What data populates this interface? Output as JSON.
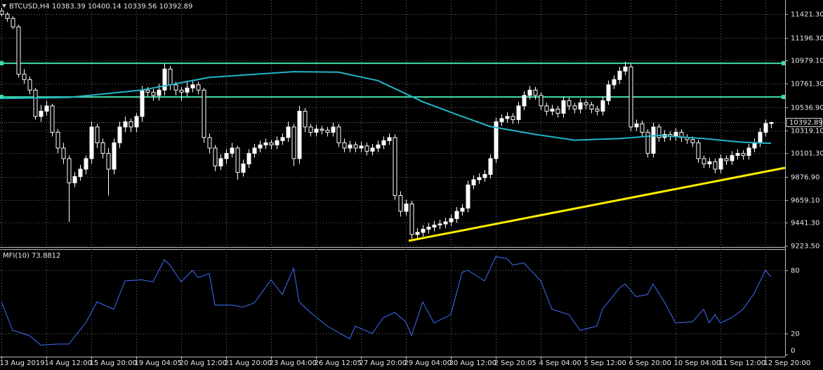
{
  "chart_data": {
    "type": "candlestick",
    "title": "BTCUSD,H4 10383.39 10400.14 10339.56 10392.89",
    "ylim": [
      9210,
      11555
    ],
    "yticks": [
      {
        "value": 11421.3,
        "label": "11421.30"
      },
      {
        "value": 11196.3,
        "label": "11196.30"
      },
      {
        "value": 10979.1,
        "label": "10979.10"
      },
      {
        "value": 10761.3,
        "label": "10761.30"
      },
      {
        "value": 10536.9,
        "label": "10536.90"
      },
      {
        "value": 10319.1,
        "label": "10319.10"
      },
      {
        "value": 10101.3,
        "label": "10101.30"
      },
      {
        "value": 9876.9,
        "label": "9876.90"
      },
      {
        "value": 9659.1,
        "label": "9659.10"
      },
      {
        "value": 9441.3,
        "label": "9441.30"
      },
      {
        "value": 9223.5,
        "label": "9223.50"
      }
    ],
    "last_price": 10392.89,
    "xticks": [
      {
        "value": 0,
        "label": "13 Aug 2019"
      },
      {
        "value": 8,
        "label": "14 Aug 12:00"
      },
      {
        "value": 16,
        "label": "15 Aug 20:00"
      },
      {
        "value": 24,
        "label": "19 Aug 04:05"
      },
      {
        "value": 32,
        "label": "20 Aug 12:00"
      },
      {
        "value": 40,
        "label": "21 Aug 20:00"
      },
      {
        "value": 48,
        "label": "23 Aug 04:00"
      },
      {
        "value": 56,
        "label": "26 Aug 12:05"
      },
      {
        "value": 64,
        "label": "27 Aug 20:00"
      },
      {
        "value": 72,
        "label": "29 Aug 04:00"
      },
      {
        "value": 80,
        "label": "30 Aug 12:00"
      },
      {
        "value": 88,
        "label": "2 Sep 20:05"
      },
      {
        "value": 96,
        "label": "4 Sep 04:00"
      },
      {
        "value": 104,
        "label": "5 Sep 12:00"
      },
      {
        "value": 112,
        "label": "6 Sep 20:00"
      },
      {
        "value": 120,
        "label": "10 Sep 04:00"
      },
      {
        "value": 128,
        "label": "11 Sep 12:00"
      },
      {
        "value": 136,
        "label": "12 Sep 20:00"
      }
    ],
    "grid": true,
    "candle_color": "#ffffff",
    "candles": [
      [
        11450,
        11480,
        11400,
        11420
      ],
      [
        11420,
        11440,
        11350,
        11380
      ],
      [
        11380,
        11400,
        11280,
        11300
      ],
      [
        11300,
        11320,
        10820,
        10850
      ],
      [
        10850,
        10900,
        10760,
        10800
      ],
      [
        10800,
        10830,
        10660,
        10700
      ],
      [
        10700,
        10720,
        10420,
        10450
      ],
      [
        10450,
        10560,
        10400,
        10500
      ],
      [
        10500,
        10600,
        10460,
        10550
      ],
      [
        10550,
        10570,
        10260,
        10300
      ],
      [
        10300,
        10330,
        10100,
        10150
      ],
      [
        10150,
        10200,
        10000,
        10050
      ],
      [
        10050,
        10080,
        9450,
        9820
      ],
      [
        9820,
        9920,
        9780,
        9880
      ],
      [
        9880,
        9990,
        9840,
        9950
      ],
      [
        9950,
        10080,
        9900,
        10050
      ],
      [
        10050,
        10400,
        10000,
        10350
      ],
      [
        10350,
        10380,
        10150,
        10200
      ],
      [
        10200,
        10240,
        10050,
        10100
      ],
      [
        10100,
        10150,
        9700,
        9950
      ],
      [
        9950,
        10240,
        9900,
        10200
      ],
      [
        10200,
        10400,
        10150,
        10350
      ],
      [
        10350,
        10450,
        10300,
        10400
      ],
      [
        10400,
        10430,
        10300,
        10350
      ],
      [
        10350,
        10480,
        10300,
        10450
      ],
      [
        10450,
        10740,
        10400,
        10700
      ],
      [
        10700,
        10730,
        10640,
        10680
      ],
      [
        10680,
        10710,
        10600,
        10650
      ],
      [
        10650,
        10760,
        10600,
        10700
      ],
      [
        10700,
        10950,
        10650,
        10900
      ],
      [
        10900,
        10930,
        10700,
        10750
      ],
      [
        10750,
        10780,
        10650,
        10700
      ],
      [
        10700,
        10730,
        10600,
        10680
      ],
      [
        10680,
        10790,
        10640,
        10720
      ],
      [
        10720,
        10800,
        10680,
        10750
      ],
      [
        10750,
        10780,
        10660,
        10700
      ],
      [
        10700,
        10720,
        10200,
        10250
      ],
      [
        10250,
        10290,
        10100,
        10150
      ],
      [
        10150,
        10180,
        9930,
        9980
      ],
      [
        9980,
        10090,
        9940,
        10050
      ],
      [
        10050,
        10140,
        10000,
        10100
      ],
      [
        10100,
        10200,
        10060,
        10150
      ],
      [
        10150,
        10170,
        9850,
        9920
      ],
      [
        9920,
        10040,
        9880,
        10000
      ],
      [
        10000,
        10140,
        9960,
        10100
      ],
      [
        10100,
        10190,
        10060,
        10150
      ],
      [
        10150,
        10220,
        10110,
        10180
      ],
      [
        10180,
        10240,
        10140,
        10200
      ],
      [
        10200,
        10230,
        10140,
        10180
      ],
      [
        10180,
        10260,
        10140,
        10220
      ],
      [
        10220,
        10290,
        10180,
        10250
      ],
      [
        10250,
        10400,
        10210,
        10350
      ],
      [
        10350,
        10380,
        9980,
        10050
      ],
      [
        10050,
        10550,
        10000,
        10500
      ],
      [
        10500,
        10530,
        10300,
        10350
      ],
      [
        10350,
        10380,
        10260,
        10300
      ],
      [
        10300,
        10370,
        10260,
        10330
      ],
      [
        10330,
        10360,
        10280,
        10320
      ],
      [
        10320,
        10350,
        10260,
        10300
      ],
      [
        10300,
        10390,
        10260,
        10350
      ],
      [
        10350,
        10380,
        10160,
        10200
      ],
      [
        10200,
        10240,
        10110,
        10150
      ],
      [
        10150,
        10220,
        10110,
        10180
      ],
      [
        10180,
        10210,
        10110,
        10150
      ],
      [
        10150,
        10210,
        10110,
        10170
      ],
      [
        10170,
        10200,
        10080,
        10120
      ],
      [
        10120,
        10190,
        10080,
        10150
      ],
      [
        10150,
        10220,
        10110,
        10180
      ],
      [
        10180,
        10260,
        10140,
        10220
      ],
      [
        10220,
        10290,
        10180,
        10250
      ],
      [
        10250,
        10280,
        9660,
        9700
      ],
      [
        9700,
        9740,
        9500,
        9550
      ],
      [
        9550,
        9660,
        9510,
        9620
      ],
      [
        9620,
        9650,
        9290,
        9330
      ],
      [
        9330,
        9390,
        9290,
        9350
      ],
      [
        9350,
        9420,
        9310,
        9380
      ],
      [
        9380,
        9440,
        9340,
        9400
      ],
      [
        9400,
        9460,
        9360,
        9420
      ],
      [
        9420,
        9470,
        9380,
        9430
      ],
      [
        9430,
        9490,
        9390,
        9450
      ],
      [
        9450,
        9520,
        9410,
        9480
      ],
      [
        9480,
        9590,
        9440,
        9550
      ],
      [
        9550,
        9620,
        9510,
        9580
      ],
      [
        9580,
        9840,
        9540,
        9800
      ],
      [
        9800,
        9890,
        9760,
        9850
      ],
      [
        9850,
        9910,
        9810,
        9870
      ],
      [
        9870,
        9940,
        9830,
        9900
      ],
      [
        9900,
        10090,
        9860,
        10050
      ],
      [
        10050,
        10440,
        10010,
        10400
      ],
      [
        10400,
        10470,
        10360,
        10430
      ],
      [
        10430,
        10490,
        10390,
        10450
      ],
      [
        10450,
        10480,
        10380,
        10420
      ],
      [
        10420,
        10590,
        10380,
        10550
      ],
      [
        10550,
        10690,
        10510,
        10650
      ],
      [
        10650,
        10740,
        10610,
        10700
      ],
      [
        10700,
        10730,
        10610,
        10650
      ],
      [
        10650,
        10680,
        10510,
        10550
      ],
      [
        10550,
        10580,
        10460,
        10500
      ],
      [
        10500,
        10560,
        10460,
        10520
      ],
      [
        10520,
        10550,
        10440,
        10480
      ],
      [
        10480,
        10640,
        10440,
        10600
      ],
      [
        10600,
        10630,
        10510,
        10550
      ],
      [
        10550,
        10580,
        10480,
        10520
      ],
      [
        10520,
        10620,
        10480,
        10580
      ],
      [
        10580,
        10610,
        10520,
        10560
      ],
      [
        10560,
        10590,
        10480,
        10520
      ],
      [
        10520,
        10550,
        10460,
        10500
      ],
      [
        10500,
        10640,
        10460,
        10600
      ],
      [
        10600,
        10790,
        10560,
        10750
      ],
      [
        10750,
        10840,
        10710,
        10800
      ],
      [
        10800,
        10920,
        10760,
        10880
      ],
      [
        10880,
        10970,
        10840,
        10920
      ],
      [
        10920,
        10950,
        10310,
        10350
      ],
      [
        10350,
        10420,
        10310,
        10380
      ],
      [
        10380,
        10410,
        10260,
        10300
      ],
      [
        10300,
        10330,
        10060,
        10100
      ],
      [
        10100,
        10390,
        10060,
        10350
      ],
      [
        10350,
        10380,
        10210,
        10250
      ],
      [
        10250,
        10320,
        10210,
        10280
      ],
      [
        10280,
        10310,
        10220,
        10260
      ],
      [
        10260,
        10340,
        10220,
        10300
      ],
      [
        10300,
        10330,
        10210,
        10250
      ],
      [
        10250,
        10280,
        10190,
        10230
      ],
      [
        10230,
        10260,
        10160,
        10200
      ],
      [
        10200,
        10230,
        10010,
        10050
      ],
      [
        10050,
        10080,
        9960,
        10000
      ],
      [
        10000,
        10060,
        9960,
        10020
      ],
      [
        10020,
        10050,
        9910,
        9950
      ],
      [
        9950,
        10090,
        9910,
        10050
      ],
      [
        10050,
        10080,
        9990,
        10030
      ],
      [
        10030,
        10120,
        9990,
        10080
      ],
      [
        10080,
        10140,
        10040,
        10100
      ],
      [
        10100,
        10130,
        10040,
        10080
      ],
      [
        10080,
        10190,
        10040,
        10150
      ],
      [
        10150,
        10240,
        10110,
        10200
      ],
      [
        10200,
        10340,
        10160,
        10300
      ],
      [
        10300,
        10420,
        10260,
        10383.39
      ],
      [
        10383.39,
        10400.14,
        10339.56,
        10392.89
      ]
    ],
    "hlines": [
      10955,
      10635
    ],
    "hline_color": "#3ee0a8",
    "ma": {
      "color": "#22b5c8",
      "x": [
        0,
        12,
        25,
        37,
        52,
        60,
        67,
        75,
        81,
        87,
        95,
        102,
        110,
        117,
        125,
        132,
        137
      ],
      "values": [
        10620,
        10630,
        10700,
        10820,
        10875,
        10870,
        10790,
        10590,
        10470,
        10355,
        10280,
        10225,
        10240,
        10270,
        10240,
        10205,
        10195
      ]
    },
    "trendline": {
      "color": "#ffee00",
      "x": [
        72.5,
        139.5
      ],
      "values": [
        9270,
        9963
      ]
    },
    "mfi": {
      "title": "MFI(10) 73.8812",
      "color": "#3f6fff",
      "ylim": [
        0,
        100
      ],
      "yticks": [
        80,
        20,
        0
      ],
      "x": [
        0,
        2,
        5,
        7,
        10,
        12,
        15,
        17,
        20,
        22,
        25,
        27,
        29,
        30,
        32,
        34,
        35,
        37,
        38,
        41,
        43,
        45,
        48,
        50,
        52,
        53,
        55,
        58,
        62,
        63,
        66,
        68,
        70,
        72,
        73,
        75,
        77,
        80,
        82,
        83,
        86,
        88,
        90,
        91,
        93,
        96,
        98,
        101,
        103,
        106,
        107,
        110,
        111,
        113,
        115,
        116,
        118,
        120,
        123,
        125,
        126,
        127,
        128,
        130,
        132,
        134,
        136,
        137
      ],
      "values": [
        50,
        23,
        18,
        9,
        10,
        10,
        30,
        50,
        43,
        70,
        71,
        69,
        90,
        85,
        69,
        80,
        73,
        77,
        47,
        47,
        45,
        49,
        71,
        57,
        82,
        50,
        40,
        27,
        15,
        27,
        20,
        35,
        40,
        31,
        18,
        50,
        30,
        38,
        78,
        80,
        70,
        93,
        91,
        85,
        87,
        70,
        43,
        38,
        23,
        27,
        43,
        63,
        67,
        55,
        57,
        67,
        50,
        30,
        31,
        43,
        30,
        38,
        30,
        35,
        43,
        58,
        80,
        73.8812
      ]
    }
  }
}
